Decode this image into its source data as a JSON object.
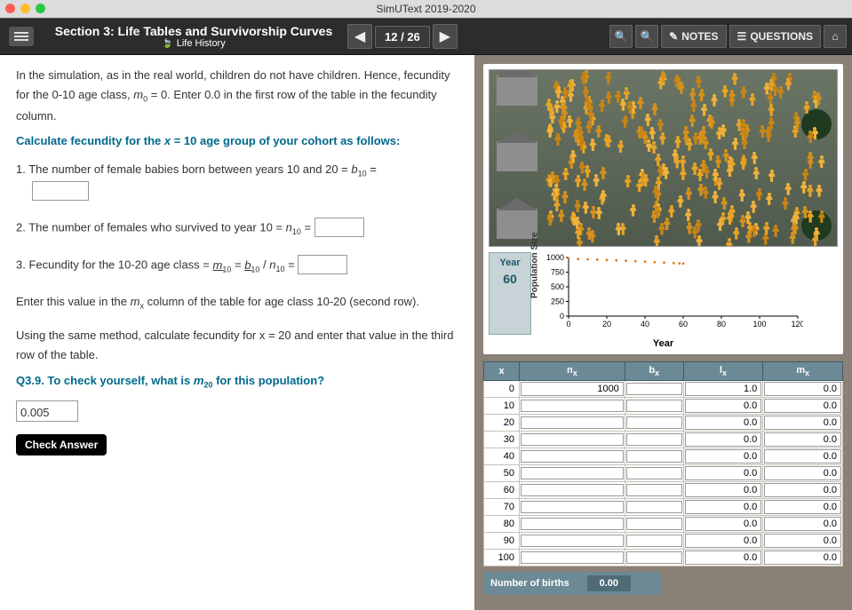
{
  "app_title": "SimUText 2019-2020",
  "header": {
    "section_title": "Section 3: Life Tables and Survivorship Curves",
    "subtitle": "Life History",
    "page_current": "12",
    "page_total": "26",
    "notes_label": "NOTES",
    "questions_label": "QUESTIONS"
  },
  "reading": {
    "intro_line1": "In the simulation, as in the real world, children do not have children.",
    "intro_line2_a": "Hence, fecundity for the 0-10 age class, ",
    "intro_line2_b": "= 0. Enter 0.0 in the first row of the table in the fecundity column.",
    "instruction": "Calculate fecundity for the x = 10 age group of your cohort as follows:",
    "step1_a": "1. The number of female babies born between years 10 and 20 = ",
    "step2_a": "2. The number of females who survived to year 10 = ",
    "step3_a": "3. Fecundity for the 10-20 age class = ",
    "enter_a": "Enter this value in the ",
    "enter_b": " column of the table for age class 10-20 (second row).",
    "using_method": "Using the same method, calculate fecundity for x = 20 and enter that value in the third row of the table.",
    "q_label_a": "Q3.9. To check yourself, what is ",
    "q_label_b": " for this population?",
    "answer_value": "0.005",
    "check_label": "Check Answer"
  },
  "sim": {
    "year_label": "Year",
    "year_value": "60",
    "chart": {
      "ylabel": "Population Size",
      "xlabel": "Year",
      "yticks": [
        0,
        250,
        500,
        750,
        1000
      ],
      "xticks": [
        0,
        20,
        40,
        60,
        80,
        100,
        120
      ],
      "series_color": "#d97b1e",
      "axis_color": "#000000",
      "points": [
        [
          0,
          980
        ],
        [
          5,
          975
        ],
        [
          10,
          970
        ],
        [
          15,
          965
        ],
        [
          20,
          958
        ],
        [
          25,
          950
        ],
        [
          30,
          945
        ],
        [
          35,
          938
        ],
        [
          40,
          930
        ],
        [
          45,
          920
        ],
        [
          50,
          912
        ],
        [
          55,
          905
        ],
        [
          58,
          900
        ],
        [
          60,
          895
        ]
      ],
      "xlim": [
        0,
        120
      ],
      "ylim": [
        0,
        1000
      ]
    }
  },
  "life_table": {
    "headers": {
      "x": "x",
      "nx": "n",
      "bx": "b",
      "lx": "l",
      "mx": "m"
    },
    "rows": [
      {
        "x": "0",
        "n": "1000",
        "b": "",
        "l": "1.0",
        "m": "0.0"
      },
      {
        "x": "10",
        "n": "",
        "b": "",
        "l": "0.0",
        "m": "0.0"
      },
      {
        "x": "20",
        "n": "",
        "b": "",
        "l": "0.0",
        "m": "0.0"
      },
      {
        "x": "30",
        "n": "",
        "b": "",
        "l": "0.0",
        "m": "0.0"
      },
      {
        "x": "40",
        "n": "",
        "b": "",
        "l": "0.0",
        "m": "0.0"
      },
      {
        "x": "50",
        "n": "",
        "b": "",
        "l": "0.0",
        "m": "0.0"
      },
      {
        "x": "60",
        "n": "",
        "b": "",
        "l": "0.0",
        "m": "0.0"
      },
      {
        "x": "70",
        "n": "",
        "b": "",
        "l": "0.0",
        "m": "0.0"
      },
      {
        "x": "80",
        "n": "",
        "b": "",
        "l": "0.0",
        "m": "0.0"
      },
      {
        "x": "90",
        "n": "",
        "b": "",
        "l": "0.0",
        "m": "0.0"
      },
      {
        "x": "100",
        "n": "",
        "b": "",
        "l": "0.0",
        "m": "0.0"
      }
    ],
    "births_label": "Number of births",
    "births_value": "0.00"
  }
}
